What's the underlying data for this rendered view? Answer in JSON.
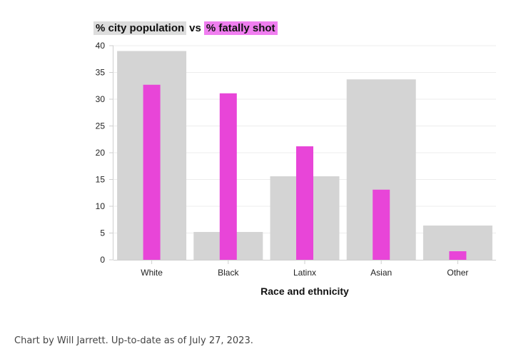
{
  "legend": {
    "population_label": "% city population",
    "connector": "vs",
    "fatal_label": "% fatally shot"
  },
  "credit": "Chart by Will Jarrett. Up-to-date as of July 27, 2023.",
  "colors": {
    "population": "#d4d4d4",
    "fatally_shot": "#e845d8",
    "fatal_legend_bg": "#f07ef0",
    "population_legend_bg": "#dddddd",
    "gridline": "#ededed",
    "axis": "#cfcfcf"
  },
  "chart_data": {
    "type": "bar",
    "title": "",
    "xlabel": "Race and ethnicity",
    "ylabel": "",
    "ylim": [
      0,
      40
    ],
    "yticks": [
      0,
      5,
      10,
      15,
      20,
      25,
      30,
      35,
      40
    ],
    "grid": true,
    "legend_placement": "top-left",
    "categories": [
      "White",
      "Black",
      "Latinx",
      "Asian",
      "Other"
    ],
    "series": [
      {
        "name": "% city population",
        "values": [
          39.0,
          5.2,
          15.6,
          33.7,
          6.4
        ]
      },
      {
        "name": "% fatally shot",
        "values": [
          32.7,
          31.1,
          21.2,
          13.1,
          1.6
        ]
      }
    ]
  }
}
